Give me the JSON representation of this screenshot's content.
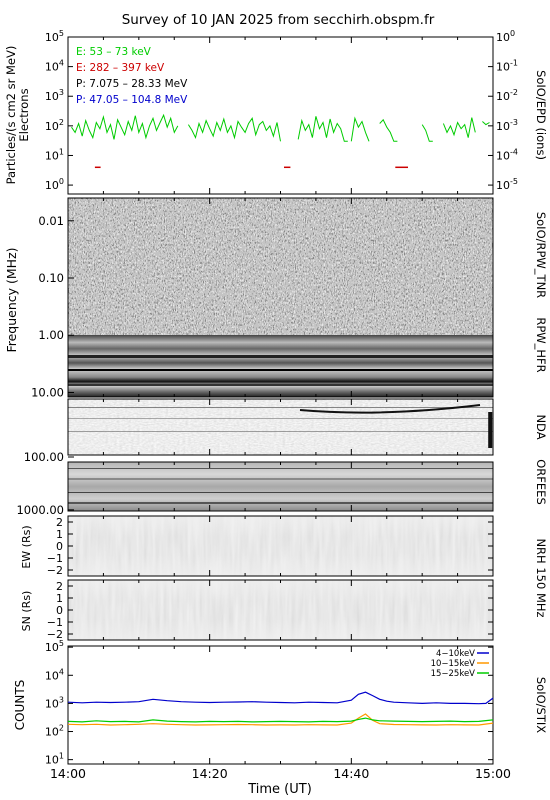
{
  "title": "Survey of 10 JAN 2025 from secchirh.obspm.fr",
  "x_axis": {
    "label": "Time (UT)",
    "ticks": [
      "14:00",
      "14:20",
      "14:40",
      "15:00"
    ]
  },
  "chart_data": [
    {
      "type": "line",
      "instrument": "SoIO/EPD",
      "ylabel_left": "Particles/(s cm2 sr MeV)",
      "ylabel_left_sub": "Electrons",
      "ylabel_right": "SoIO/EPD (ions)",
      "y_scale": "log",
      "ylim": [
        0.5,
        100000
      ],
      "y2lim": [
        5e-06,
        1
      ],
      "ticks_left": [
        "10^0",
        "10^1",
        "10^2",
        "10^3",
        "10^4",
        "10^5"
      ],
      "ticks_right": [
        "10^-5",
        "10^-4",
        "10^-3",
        "10^-2",
        "10^-1",
        "10^0"
      ],
      "time_range_min": [
        0,
        60
      ],
      "legend": [
        {
          "label": "E: 53 – 73 keV",
          "color": "#00cc00"
        },
        {
          "label": "E: 282 – 397 keV",
          "color": "#cc0000"
        },
        {
          "label": "P: 7.075 – 28.33 MeV",
          "color": "#000000"
        },
        {
          "label": "P: 47.05 – 104.8 MeV",
          "color": "#0000cc"
        }
      ],
      "series": [
        {
          "name": "E: 53 – 73 keV",
          "color": "#00cc00",
          "segments": [
            [
              [
                0.5,
                90
              ],
              [
                1,
                60
              ],
              [
                1.5,
                120
              ],
              [
                2,
                45
              ],
              [
                2.5,
                150
              ],
              [
                3,
                70
              ],
              [
                3.5,
                40
              ],
              [
                4,
                130
              ],
              [
                4.5,
                80
              ],
              [
                5,
                200
              ],
              [
                5.5,
                60
              ],
              [
                6,
                110
              ],
              [
                6.5,
                35
              ],
              [
                7,
                160
              ],
              [
                7.5,
                90
              ],
              [
                8,
                50
              ],
              [
                8.5,
                140
              ],
              [
                9,
                70
              ],
              [
                9.5,
                220
              ],
              [
                10,
                60
              ],
              [
                10.5,
                120
              ],
              [
                11,
                40
              ],
              [
                11.5,
                100
              ],
              [
                12,
                180
              ],
              [
                12.5,
                70
              ],
              [
                13,
                130
              ],
              [
                13.5,
                230
              ],
              [
                14,
                90
              ],
              [
                14.5,
                180
              ],
              [
                15,
                60
              ],
              [
                15.5,
                100
              ]
            ],
            [
              [
                17,
                110
              ],
              [
                17.5,
                70
              ],
              [
                18,
                40
              ],
              [
                18.5,
                120
              ],
              [
                19,
                60
              ],
              [
                19.5,
                150
              ],
              [
                20,
                80
              ],
              [
                20.5,
                45
              ],
              [
                21,
                130
              ],
              [
                21.5,
                70
              ],
              [
                22,
                170
              ],
              [
                22.5,
                60
              ],
              [
                23,
                100
              ],
              [
                23.5,
                40
              ],
              [
                24,
                140
              ],
              [
                24.5,
                90
              ],
              [
                25,
                60
              ],
              [
                25.5,
                120
              ],
              [
                26,
                180
              ],
              [
                26.5,
                50
              ],
              [
                27,
                110
              ],
              [
                27.5,
                140
              ],
              [
                28,
                70
              ],
              [
                28.5,
                100
              ],
              [
                29,
                45
              ],
              [
                29.5,
                130
              ],
              [
                30,
                30
              ]
            ],
            [
              [
                32.5,
                35
              ],
              [
                33,
                150
              ],
              [
                33.5,
                70
              ],
              [
                34,
                110
              ],
              [
                34.5,
                40
              ],
              [
                35,
                210
              ],
              [
                35.5,
                80
              ],
              [
                36,
                130
              ],
              [
                36.5,
                40
              ],
              [
                37,
                170
              ],
              [
                37.5,
                60
              ],
              [
                38,
                120
              ],
              [
                38.5,
                80
              ],
              [
                39,
                30
              ],
              [
                39.5,
                30
              ]
            ],
            [
              [
                40,
                30
              ],
              [
                40.5,
                180
              ],
              [
                41,
                90
              ],
              [
                41.5,
                140
              ],
              [
                42,
                60
              ],
              [
                42.5,
                30
              ]
            ],
            [
              [
                44,
                120
              ],
              [
                44.5,
                160
              ],
              [
                45,
                90
              ],
              [
                45.5,
                60
              ],
              [
                46,
                30
              ],
              [
                46.5,
                30
              ]
            ],
            [
              [
                50,
                110
              ],
              [
                50.5,
                70
              ],
              [
                51,
                30
              ],
              [
                51.5,
                30
              ]
            ],
            [
              [
                53,
                120
              ],
              [
                53.5,
                60
              ],
              [
                54,
                100
              ],
              [
                54.5,
                50
              ],
              [
                55,
                130
              ],
              [
                55.5,
                80
              ],
              [
                56,
                110
              ],
              [
                56.5,
                40
              ],
              [
                57,
                190
              ],
              [
                57.5,
                60
              ]
            ],
            [
              [
                58.5,
                140
              ],
              [
                59,
                110
              ],
              [
                59.5,
                130
              ]
            ]
          ]
        },
        {
          "name": "E: 282 – 397 keV",
          "color": "#cc0000",
          "segments": [
            [
              [
                3.8,
                4
              ],
              [
                4.6,
                4
              ]
            ],
            [
              [
                30.5,
                4
              ],
              [
                31.4,
                4
              ]
            ],
            [
              [
                46.2,
                4
              ],
              [
                48.0,
                4
              ]
            ]
          ]
        }
      ]
    },
    {
      "type": "heatmap",
      "instrument": "SoIO/RPW_TNR",
      "instrument2": "RPW_HFR",
      "ylabel": "Frequency (MHz)",
      "y_scale": "log",
      "y_inverted": true,
      "ylim": [
        0.004,
        12
      ],
      "ticks": [
        {
          "value": 0.01,
          "label": "0.01"
        },
        {
          "value": 0.1,
          "label": "0.10"
        },
        {
          "value": 1,
          "label": "1.00"
        },
        {
          "value": 10,
          "label": "10.00"
        }
      ],
      "tnr_range_mhz": [
        0.004,
        0.9
      ],
      "hfr_range_mhz": [
        0.9,
        12
      ],
      "colormap": "grayscale"
    },
    {
      "type": "heatmap",
      "instrument": "NDA",
      "y_scale": "log",
      "ylim": [
        12,
        80
      ],
      "burst_time_min": 59.6,
      "colormap": "grayscale"
    },
    {
      "type": "heatmap",
      "instrument": "ORFEES",
      "y_scale": "log",
      "ylim": [
        130,
        1050
      ],
      "ticks": [
        {
          "value": 100,
          "label": "100.00"
        },
        {
          "value": 1000,
          "label": "1000.00"
        }
      ],
      "colormap": "grayscale"
    },
    {
      "type": "heatmap",
      "instrument": "NRH 150 MHz",
      "ylabel": "EW (Rs)",
      "ylim": [
        -2.5,
        2.5
      ],
      "ticks": [
        "2",
        "1",
        "0",
        "−1",
        "−2"
      ],
      "colormap": "grayscale"
    },
    {
      "type": "heatmap",
      "instrument": "NRH 150 MHz",
      "ylabel": "SN (Rs)",
      "ylim": [
        -2.5,
        2.5
      ],
      "ticks": [
        "2",
        "1",
        "0",
        "−1",
        "−2"
      ],
      "colormap": "grayscale"
    },
    {
      "type": "line",
      "instrument": "SoIO/STIX",
      "ylabel": "COUNTS",
      "y_scale": "log",
      "ylim": [
        7,
        110000
      ],
      "ticks": [
        "10^1",
        "10^2",
        "10^3",
        "10^4",
        "10^5"
      ],
      "legend": [
        {
          "label": "4−10keV",
          "color": "#0000cc"
        },
        {
          "label": "10−15keV",
          "color": "#ff9900"
        },
        {
          "label": "15−25keV",
          "color": "#00cc00"
        }
      ],
      "series": [
        {
          "name": "4−10keV",
          "color": "#0000cc",
          "x": [
            0,
            2,
            4,
            6,
            8,
            10,
            12,
            14,
            16,
            18,
            20,
            22,
            24,
            26,
            28,
            30,
            32,
            34,
            36,
            38,
            40,
            41,
            42,
            43,
            44,
            45,
            46,
            48,
            50,
            52,
            54,
            56,
            58,
            59,
            60
          ],
          "y": [
            1100,
            1050,
            1100,
            1080,
            1100,
            1150,
            1400,
            1250,
            1150,
            1100,
            1080,
            1100,
            1120,
            1150,
            1100,
            1080,
            1050,
            1100,
            1080,
            1050,
            1300,
            2100,
            2500,
            1900,
            1400,
            1200,
            1100,
            1050,
            1000,
            1050,
            1000,
            1000,
            980,
            1000,
            1550
          ]
        },
        {
          "name": "10−15keV",
          "color": "#ff9900",
          "x": [
            0,
            2,
            4,
            6,
            8,
            10,
            12,
            14,
            16,
            18,
            20,
            22,
            24,
            26,
            28,
            30,
            32,
            34,
            36,
            38,
            40,
            41,
            42,
            43,
            44,
            46,
            48,
            50,
            52,
            54,
            56,
            58,
            60
          ],
          "y": [
            180,
            175,
            180,
            170,
            175,
            180,
            190,
            180,
            175,
            170,
            172,
            175,
            178,
            175,
            170,
            172,
            170,
            175,
            172,
            170,
            200,
            300,
            420,
            250,
            190,
            178,
            175,
            172,
            170,
            175,
            172,
            170,
            200
          ]
        },
        {
          "name": "15−25keV",
          "color": "#00cc00",
          "x": [
            0,
            2,
            4,
            6,
            8,
            10,
            12,
            14,
            16,
            18,
            20,
            22,
            24,
            26,
            28,
            30,
            32,
            34,
            36,
            38,
            40,
            41,
            42,
            43,
            44,
            46,
            48,
            50,
            52,
            54,
            56,
            58,
            60
          ],
          "y": [
            230,
            220,
            240,
            225,
            230,
            220,
            260,
            235,
            225,
            220,
            230,
            225,
            230,
            220,
            225,
            230,
            225,
            220,
            230,
            225,
            235,
            270,
            300,
            260,
            240,
            235,
            230,
            225,
            230,
            235,
            225,
            230,
            260
          ]
        }
      ]
    }
  ]
}
